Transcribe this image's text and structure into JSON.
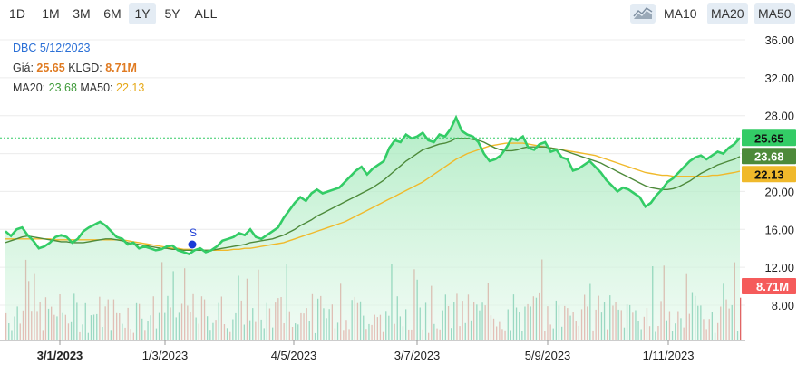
{
  "range_buttons": [
    "1D",
    "1M",
    "3M",
    "6M",
    "1Y",
    "5Y",
    "ALL"
  ],
  "active_range": "1Y",
  "ma_buttons": [
    "MA10",
    "MA20",
    "MA50"
  ],
  "active_ma": [
    "MA20",
    "MA50"
  ],
  "info": {
    "ticker_date": "DBC 5/12/2023",
    "price_label": "Giá:",
    "price_value": "25.65",
    "volume_label": "KLGD:",
    "volume_value": "8.71M",
    "ma20_label": "MA20:",
    "ma20_value": "23.68",
    "ma50_label": "MA50:",
    "ma50_value": "22.13"
  },
  "colors": {
    "price": "#33cc66",
    "ma20": "#4d8a3a",
    "ma50": "#f0b92b",
    "vol_up": "#2aa784",
    "vol_down": "#e06464",
    "accent_blue": "#2a6fd6",
    "orange": "#e07b22",
    "badge_vol": "#f55b5b"
  },
  "chart_data": {
    "type": "line",
    "x_ticks": [
      "3/1/2023",
      "1/3/2023",
      "4/5/2023",
      "3/7/2023",
      "5/9/2023",
      "1/11/2023"
    ],
    "y_ticks": [
      "36.00",
      "32.00",
      "28.00",
      "24.00",
      "20.00",
      "16.00",
      "12.00",
      "8.00"
    ],
    "ylim": [
      8,
      36
    ],
    "badges": {
      "price": "25.65",
      "ma20": "23.68",
      "ma50": "22.13",
      "volume": "8.71M"
    },
    "signal": "S",
    "price": [
      15.8,
      15.3,
      16.0,
      16.2,
      15.4,
      14.8,
      14.0,
      14.2,
      14.6,
      15.2,
      15.4,
      15.2,
      14.6,
      15.0,
      15.8,
      16.2,
      16.5,
      16.8,
      16.4,
      15.8,
      15.2,
      15.0,
      14.4,
      14.6,
      14.0,
      14.2,
      14.0,
      13.8,
      13.9,
      14.2,
      14.3,
      13.8,
      13.6,
      13.4,
      13.8,
      14.0,
      13.6,
      13.8,
      14.2,
      14.8,
      15.0,
      15.2,
      15.6,
      15.4,
      16.0,
      15.2,
      15.0,
      15.4,
      15.8,
      16.2,
      17.2,
      18.0,
      18.8,
      19.4,
      19.0,
      19.8,
      20.2,
      19.8,
      20.0,
      20.2,
      20.4,
      21.0,
      21.6,
      22.2,
      22.6,
      21.8,
      22.4,
      22.8,
      23.2,
      24.6,
      25.4,
      25.2,
      26.0,
      25.6,
      25.8,
      26.2,
      25.4,
      25.2,
      26.0,
      25.8,
      26.6,
      27.8,
      26.4,
      26.0,
      25.8,
      25.2,
      24.0,
      23.2,
      23.4,
      23.8,
      24.6,
      25.6,
      25.4,
      25.8,
      24.6,
      24.4,
      25.0,
      25.2,
      24.2,
      24.4,
      23.6,
      23.4,
      22.2,
      22.4,
      22.8,
      23.2,
      22.6,
      22.0,
      21.2,
      20.6,
      20.0,
      20.4,
      20.2,
      19.8,
      19.4,
      18.4,
      18.8,
      19.6,
      20.2,
      21.0,
      21.4,
      22.0,
      22.6,
      23.2,
      23.6,
      23.8,
      23.4,
      23.8,
      24.2,
      24.0,
      24.6,
      25.0,
      25.65
    ],
    "ma20": [
      14.6,
      14.8,
      15.0,
      15.2,
      15.3,
      15.2,
      15.1,
      15.0,
      14.9,
      14.8,
      14.7,
      14.7,
      14.6,
      14.6,
      14.6,
      14.7,
      14.8,
      14.9,
      15.0,
      15.0,
      14.9,
      14.8,
      14.6,
      14.5,
      14.4,
      14.3,
      14.2,
      14.1,
      14.0,
      14.0,
      13.9,
      13.9,
      13.8,
      13.8,
      13.8,
      13.8,
      13.8,
      13.8,
      13.9,
      14.0,
      14.1,
      14.2,
      14.3,
      14.4,
      14.6,
      14.7,
      14.8,
      14.9,
      15.0,
      15.2,
      15.4,
      15.7,
      16.0,
      16.4,
      16.7,
      17.0,
      17.4,
      17.7,
      18.0,
      18.3,
      18.6,
      18.9,
      19.2,
      19.5,
      19.8,
      20.1,
      20.4,
      20.8,
      21.2,
      21.7,
      22.2,
      22.7,
      23.2,
      23.6,
      24.0,
      24.4,
      24.6,
      24.8,
      25.0,
      25.1,
      25.3,
      25.6,
      25.6,
      25.6,
      25.5,
      25.4,
      25.2,
      24.9,
      24.6,
      24.4,
      24.3,
      24.3,
      24.4,
      24.6,
      24.7,
      24.7,
      24.7,
      24.7,
      24.6,
      24.5,
      24.4,
      24.2,
      24.0,
      23.8,
      23.6,
      23.4,
      23.2,
      23.0,
      22.7,
      22.4,
      22.1,
      21.8,
      21.5,
      21.2,
      20.9,
      20.6,
      20.4,
      20.3,
      20.2,
      20.2,
      20.3,
      20.5,
      20.8,
      21.1,
      21.5,
      21.9,
      22.2,
      22.5,
      22.8,
      23.0,
      23.2,
      23.4,
      23.68
    ],
    "ma50": [
      15.0,
      15.0,
      15.0,
      15.0,
      15.0,
      15.0,
      15.0,
      15.0,
      15.0,
      14.9,
      14.9,
      14.9,
      14.9,
      14.9,
      14.9,
      14.9,
      14.9,
      14.9,
      14.9,
      14.9,
      14.9,
      14.9,
      14.8,
      14.7,
      14.6,
      14.5,
      14.4,
      14.3,
      14.2,
      14.1,
      14.0,
      14.0,
      13.9,
      13.9,
      13.8,
      13.8,
      13.8,
      13.8,
      13.8,
      13.8,
      13.8,
      13.9,
      13.9,
      14.0,
      14.0,
      14.1,
      14.2,
      14.3,
      14.4,
      14.5,
      14.6,
      14.8,
      15.0,
      15.2,
      15.4,
      15.6,
      15.8,
      16.0,
      16.2,
      16.4,
      16.6,
      16.8,
      17.1,
      17.4,
      17.7,
      18.0,
      18.3,
      18.6,
      18.9,
      19.2,
      19.5,
      19.8,
      20.1,
      20.4,
      20.7,
      21.0,
      21.4,
      21.8,
      22.2,
      22.6,
      23.0,
      23.4,
      23.7,
      24.0,
      24.2,
      24.4,
      24.6,
      24.8,
      24.9,
      25.0,
      25.1,
      25.1,
      25.1,
      25.1,
      25.0,
      24.9,
      24.8,
      24.7,
      24.6,
      24.5,
      24.4,
      24.3,
      24.2,
      24.1,
      24.0,
      23.9,
      23.8,
      23.6,
      23.4,
      23.2,
      23.0,
      22.8,
      22.6,
      22.4,
      22.2,
      22.0,
      21.9,
      21.8,
      21.7,
      21.7,
      21.6,
      21.6,
      21.6,
      21.6,
      21.6,
      21.6,
      21.6,
      21.7,
      21.7,
      21.8,
      21.9,
      22.0,
      22.13
    ]
  }
}
